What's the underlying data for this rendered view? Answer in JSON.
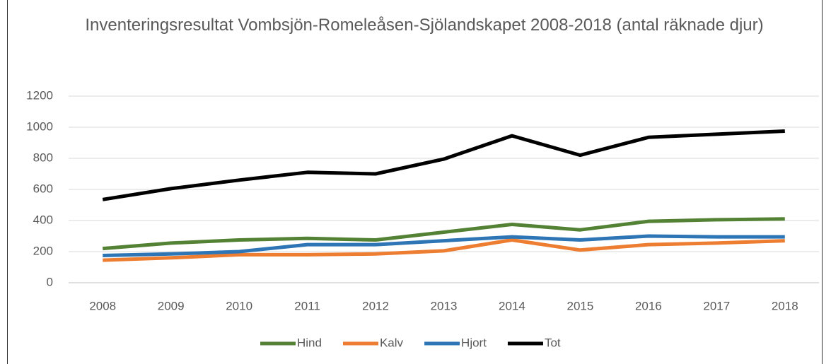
{
  "chart_data": {
    "type": "line",
    "title": "Inventeringsresultat Vombsjön-Romeleåsen-Sjölandskapet 2008-2018 (antal räknade djur)",
    "categories": [
      "2008",
      "2009",
      "2010",
      "2011",
      "2012",
      "2013",
      "2014",
      "2015",
      "2016",
      "2017",
      "2018"
    ],
    "series": [
      {
        "name": "Hind",
        "color": "#548235",
        "values": [
          220,
          255,
          275,
          285,
          275,
          325,
          375,
          340,
          395,
          405,
          410
        ]
      },
      {
        "name": "Kalv",
        "color": "#ed7d31",
        "values": [
          145,
          160,
          180,
          180,
          185,
          205,
          275,
          210,
          245,
          255,
          270
        ]
      },
      {
        "name": "Hjort",
        "color": "#2e75b6",
        "values": [
          175,
          185,
          200,
          245,
          245,
          270,
          295,
          275,
          300,
          295,
          295
        ]
      },
      {
        "name": "Tot",
        "color": "#000000",
        "values": [
          535,
          605,
          660,
          710,
          700,
          795,
          945,
          820,
          935,
          955,
          975
        ]
      }
    ],
    "ylim": [
      0,
      1200
    ],
    "yticks": [
      0,
      200,
      400,
      600,
      800,
      1000,
      1200
    ],
    "grid": true,
    "legend": "bottom"
  }
}
